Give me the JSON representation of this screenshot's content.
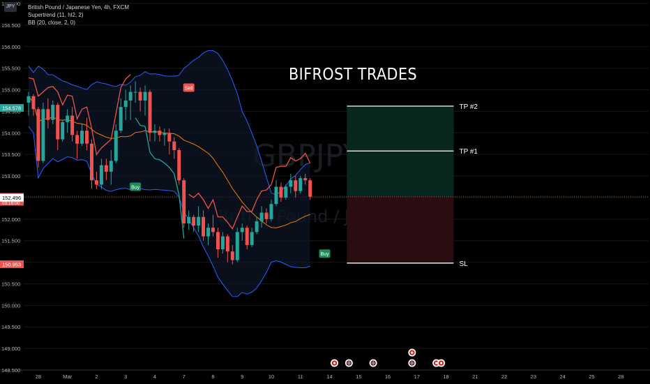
{
  "header": {
    "symbol_badge": "JPY",
    "title": "British Pound / Japanese Yen, 4h, FXCM",
    "indicator_1": "Supertrend (11, hl2, 2)",
    "indicator_2": "BB (20, close, 2, 0)"
  },
  "watermark": {
    "symbol": "GBPJPY, 4h",
    "name": "British Pound / Japanese Yen"
  },
  "brand_text": "BIFROST TRADES",
  "colors": {
    "bull": "#26a69a",
    "bear": "#ef5350",
    "bb": "#2962ff",
    "basis": "#f57c00",
    "bg": "#000000"
  },
  "chart_data": {
    "type": "candlestick",
    "title": "British Pound / Japanese Yen, 4h, FXCM",
    "ylim": [
      148.5,
      157.0
    ],
    "y_ticks": [
      "157.000",
      "156.500",
      "156.000",
      "155.500",
      "155.000",
      "154.500",
      "154.000",
      "153.500",
      "153.000",
      "152.500",
      "152.000",
      "151.500",
      "151.000",
      "150.500",
      "150.000",
      "149.500",
      "149.000",
      "148.500"
    ],
    "x_ticks": [
      {
        "label": "28",
        "bar": 2
      },
      {
        "label": "Mar",
        "bar": 8
      },
      {
        "label": "2",
        "bar": 14
      },
      {
        "label": "3",
        "bar": 20
      },
      {
        "label": "4",
        "bar": 26
      },
      {
        "label": "7",
        "bar": 32
      },
      {
        "label": "8",
        "bar": 38
      },
      {
        "label": "9",
        "bar": 44
      },
      {
        "label": "10",
        "bar": 50
      },
      {
        "label": "11",
        "bar": 56
      },
      {
        "label": "14",
        "bar": 62
      },
      {
        "label": "15",
        "bar": 68
      },
      {
        "label": "16",
        "bar": 74
      },
      {
        "label": "17",
        "bar": 80
      },
      {
        "label": "18",
        "bar": 86
      },
      {
        "label": "21",
        "bar": 92
      },
      {
        "label": "22",
        "bar": 98
      },
      {
        "label": "23",
        "bar": 104
      },
      {
        "label": "24",
        "bar": 110
      },
      {
        "label": "25",
        "bar": 116
      },
      {
        "label": "28",
        "bar": 122
      }
    ],
    "candles": [
      [
        154.7,
        154.95,
        154.4,
        154.85
      ],
      [
        154.85,
        154.9,
        154.4,
        154.55
      ],
      [
        154.55,
        154.6,
        153.2,
        153.35
      ],
      [
        153.35,
        154.7,
        153.3,
        154.55
      ],
      [
        154.55,
        154.8,
        154.1,
        154.3
      ],
      [
        154.3,
        154.75,
        154.2,
        154.65
      ],
      [
        154.65,
        154.7,
        153.6,
        153.85
      ],
      [
        153.85,
        154.3,
        153.8,
        154.25
      ],
      [
        154.25,
        154.55,
        154.0,
        154.4
      ],
      [
        154.4,
        154.6,
        153.8,
        153.95
      ],
      [
        153.95,
        154.05,
        153.4,
        153.75
      ],
      [
        153.75,
        154.2,
        153.7,
        154.05
      ],
      [
        154.05,
        154.35,
        153.6,
        153.75
      ],
      [
        153.75,
        153.85,
        152.7,
        152.9
      ],
      [
        152.9,
        153.1,
        152.7,
        152.8
      ],
      [
        152.8,
        153.4,
        152.7,
        153.25
      ],
      [
        153.25,
        153.4,
        152.9,
        153.1
      ],
      [
        153.1,
        153.6,
        152.8,
        153.35
      ],
      [
        153.35,
        154.2,
        153.3,
        154.05
      ],
      [
        154.05,
        154.8,
        154.0,
        154.6
      ],
      [
        154.6,
        155.0,
        154.3,
        154.75
      ],
      [
        154.75,
        155.1,
        154.3,
        154.95
      ],
      [
        154.95,
        155.2,
        154.7,
        154.95
      ],
      [
        154.95,
        155.05,
        154.5,
        154.75
      ],
      [
        154.75,
        155.1,
        154.4,
        154.95
      ],
      [
        154.95,
        155.0,
        153.8,
        154.0
      ],
      [
        154.0,
        154.2,
        153.8,
        154.05
      ],
      [
        154.05,
        154.15,
        153.8,
        153.95
      ],
      [
        153.95,
        154.1,
        153.7,
        154.0
      ],
      [
        154.0,
        154.1,
        153.5,
        153.8
      ],
      [
        153.8,
        153.9,
        153.4,
        153.6
      ],
      [
        153.6,
        153.65,
        152.8,
        152.9
      ],
      [
        152.9,
        152.95,
        151.8,
        151.9
      ],
      [
        151.9,
        152.2,
        151.75,
        152.05
      ],
      [
        152.05,
        152.1,
        151.7,
        151.85
      ],
      [
        151.85,
        152.3,
        151.7,
        152.05
      ],
      [
        152.05,
        152.2,
        151.5,
        151.6
      ],
      [
        151.6,
        151.9,
        151.4,
        151.8
      ],
      [
        151.8,
        152.1,
        151.6,
        151.7
      ],
      [
        151.7,
        151.8,
        151.1,
        151.3
      ],
      [
        151.3,
        151.7,
        151.2,
        151.6
      ],
      [
        151.6,
        151.65,
        151.0,
        151.25
      ],
      [
        151.25,
        151.4,
        150.95,
        151.05
      ],
      [
        151.05,
        151.8,
        151.0,
        151.7
      ],
      [
        151.7,
        151.9,
        151.5,
        151.8
      ],
      [
        151.8,
        151.85,
        151.3,
        151.4
      ],
      [
        151.4,
        151.8,
        151.35,
        151.7
      ],
      [
        151.7,
        152.05,
        151.65,
        151.95
      ],
      [
        151.95,
        152.3,
        151.8,
        152.15
      ],
      [
        152.15,
        152.25,
        151.9,
        152.0
      ],
      [
        152.0,
        152.45,
        151.95,
        152.35
      ],
      [
        152.35,
        152.9,
        152.3,
        152.75
      ],
      [
        152.75,
        152.85,
        152.4,
        152.5
      ],
      [
        152.5,
        152.8,
        152.45,
        152.75
      ],
      [
        152.75,
        153.05,
        152.6,
        152.9
      ],
      [
        152.9,
        153.0,
        152.5,
        152.65
      ],
      [
        152.65,
        153.0,
        152.6,
        152.95
      ],
      [
        152.95,
        153.05,
        152.8,
        152.9
      ],
      [
        152.9,
        152.95,
        152.45,
        152.52
      ]
    ],
    "price_labels": [
      {
        "text": "154.578",
        "value": 154.578,
        "color": "#26a69a"
      },
      {
        "text": "152.516",
        "sub": "03:16:00",
        "value": 152.516,
        "color": "#ef5350"
      },
      {
        "text": "152.496",
        "value": 152.496,
        "color": "#ffffff"
      },
      {
        "text": "150.953",
        "value": 150.953,
        "color": "#ef5350"
      }
    ],
    "signals": [
      {
        "text": "Sell",
        "bar": 33,
        "price": 155.05,
        "type": "sell"
      },
      {
        "text": "Buy",
        "bar": 22,
        "price": 152.75,
        "type": "buy"
      },
      {
        "text": "Buy",
        "bar": 61,
        "price": 151.2,
        "type": "buy"
      }
    ],
    "position": {
      "start_bar": 66,
      "end_bar": 88,
      "entry": 152.516,
      "tp1": 153.58,
      "tp2": 154.62,
      "sl": 150.98,
      "labels": {
        "tp1": "TP #1",
        "tp2": "TP #2",
        "sl": "SL"
      }
    },
    "events": [
      {
        "bar": 63,
        "type": "red"
      },
      {
        "bar": 66,
        "type": "flag"
      },
      {
        "bar": 71,
        "type": "flag"
      },
      {
        "bar": 79,
        "type": "flag"
      },
      {
        "bar": 79,
        "type": "red",
        "row": 1
      },
      {
        "bar": 84,
        "type": "red"
      },
      {
        "bar": 85,
        "type": "red"
      }
    ]
  }
}
